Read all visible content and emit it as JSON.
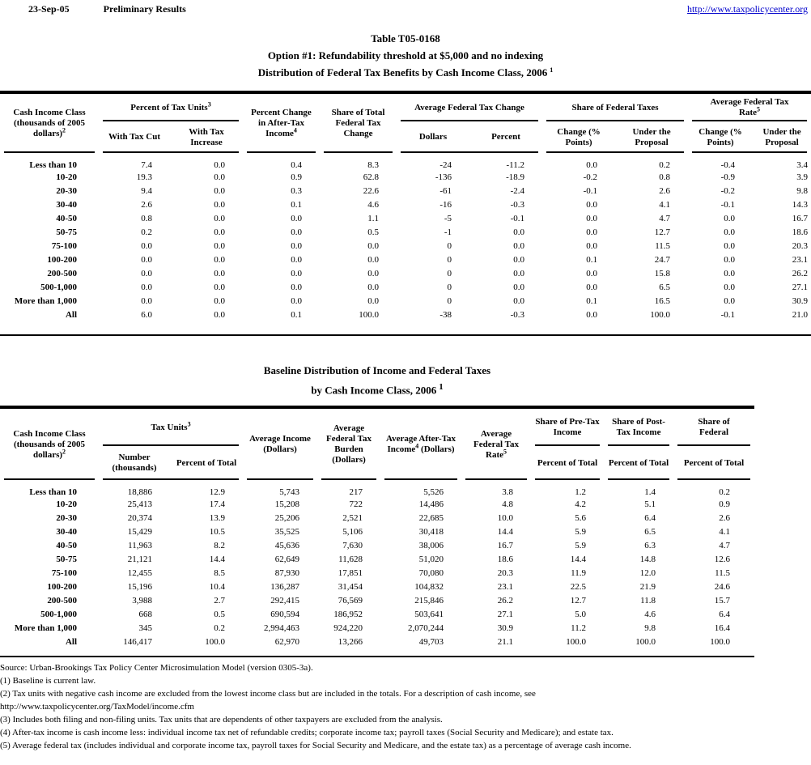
{
  "page_header": {
    "date": "23-Sep-05",
    "status": "Preliminary Results",
    "url": "http://www.taxpolicycenter.org",
    "link_color": "#0000cc"
  },
  "title": {
    "line1": "Table T05-0168",
    "line2": "Option #1: Refundability threshold at $5,000 and no indexing",
    "line3": "Distribution of Federal Tax Benefits by Cash Income Class, 2006",
    "line3_sup": "1"
  },
  "table1": {
    "headers": {
      "income_class": "Cash Income Class (thousands of 2005 dollars)",
      "income_class_sup": "2",
      "pct_tax_units": "Percent of Tax Units",
      "pct_tax_units_sup": "3",
      "with_tax_cut": "With Tax Cut",
      "with_tax_increase": "With Tax Increase",
      "pct_change_ati": "Percent Change in After-Tax Income",
      "pct_change_ati_sup": "4",
      "share_total_change": "Share of Total Federal Tax Change",
      "avg_tax_change": "Average Federal Tax Change",
      "dollars": "Dollars",
      "percent": "Percent",
      "share_fed_taxes": "Share of Federal Taxes",
      "change_points_a": "Change (% Points)",
      "under_proposal_a": "Under the Proposal",
      "avg_tax_rate": "Average Federal Tax Rate",
      "avg_tax_rate_sup": "5",
      "change_points_b": "Change (% Points)",
      "under_proposal_b": "Under the Proposal"
    },
    "rows": [
      [
        "Less than 10",
        "7.4",
        "0.0",
        "0.4",
        "8.3",
        "-24",
        "-11.2",
        "0.0",
        "0.2",
        "-0.4",
        "3.4"
      ],
      [
        "10-20",
        "19.3",
        "0.0",
        "0.9",
        "62.8",
        "-136",
        "-18.9",
        "-0.2",
        "0.8",
        "-0.9",
        "3.9"
      ],
      [
        "20-30",
        "9.4",
        "0.0",
        "0.3",
        "22.6",
        "-61",
        "-2.4",
        "-0.1",
        "2.6",
        "-0.2",
        "9.8"
      ],
      [
        "30-40",
        "2.6",
        "0.0",
        "0.1",
        "4.6",
        "-16",
        "-0.3",
        "0.0",
        "4.1",
        "-0.1",
        "14.3"
      ],
      [
        "40-50",
        "0.8",
        "0.0",
        "0.0",
        "1.1",
        "-5",
        "-0.1",
        "0.0",
        "4.7",
        "0.0",
        "16.7"
      ],
      [
        "50-75",
        "0.2",
        "0.0",
        "0.0",
        "0.5",
        "-1",
        "0.0",
        "0.0",
        "12.7",
        "0.0",
        "18.6"
      ],
      [
        "75-100",
        "0.0",
        "0.0",
        "0.0",
        "0.0",
        "0",
        "0.0",
        "0.0",
        "11.5",
        "0.0",
        "20.3"
      ],
      [
        "100-200",
        "0.0",
        "0.0",
        "0.0",
        "0.0",
        "0",
        "0.0",
        "0.1",
        "24.7",
        "0.0",
        "23.1"
      ],
      [
        "200-500",
        "0.0",
        "0.0",
        "0.0",
        "0.0",
        "0",
        "0.0",
        "0.0",
        "15.8",
        "0.0",
        "26.2"
      ],
      [
        "500-1,000",
        "0.0",
        "0.0",
        "0.0",
        "0.0",
        "0",
        "0.0",
        "0.0",
        "6.5",
        "0.0",
        "27.1"
      ],
      [
        "More than 1,000",
        "0.0",
        "0.0",
        "0.0",
        "0.0",
        "0",
        "0.0",
        "0.1",
        "16.5",
        "0.0",
        "30.9"
      ],
      [
        "All",
        "6.0",
        "0.0",
        "0.1",
        "100.0",
        "-38",
        "-0.3",
        "0.0",
        "100.0",
        "-0.1",
        "21.0"
      ]
    ]
  },
  "table2_title": {
    "line1": "Baseline Distribution of Income and Federal Taxes",
    "line2": "by Cash Income Class, 2006",
    "line2_sup": "1"
  },
  "table2": {
    "headers": {
      "income_class": "Cash Income Class (thousands of 2005 dollars)",
      "income_class_sup": "2",
      "tax_units": "Tax Units",
      "tax_units_sup": "3",
      "number_thousands": "Number (thousands)",
      "percent_of_total": "Percent of Total",
      "avg_income": "Average Income (Dollars)",
      "avg_burden": "Average Federal Tax Burden (Dollars)",
      "avg_after_tax": "Average After-Tax Income",
      "avg_after_tax_sup": "4",
      "avg_after_tax_sfx": "(Dollars)",
      "avg_rate": "Average Federal Tax Rate",
      "avg_rate_sup": "5",
      "share_pretax": "Share of Pre-Tax Income",
      "share_posttax": "Share of Post-Tax Income",
      "share_federal": "Share of Federal",
      "pct_total_a": "Percent of Total",
      "pct_total_b": "Percent of Total",
      "pct_total_c": "Percent of Total"
    },
    "rows": [
      [
        "Less than 10",
        "18,886",
        "12.9",
        "5,743",
        "217",
        "5,526",
        "3.8",
        "1.2",
        "1.4",
        "0.2"
      ],
      [
        "10-20",
        "25,413",
        "17.4",
        "15,208",
        "722",
        "14,486",
        "4.8",
        "4.2",
        "5.1",
        "0.9"
      ],
      [
        "20-30",
        "20,374",
        "13.9",
        "25,206",
        "2,521",
        "22,685",
        "10.0",
        "5.6",
        "6.4",
        "2.6"
      ],
      [
        "30-40",
        "15,429",
        "10.5",
        "35,525",
        "5,106",
        "30,418",
        "14.4",
        "5.9",
        "6.5",
        "4.1"
      ],
      [
        "40-50",
        "11,963",
        "8.2",
        "45,636",
        "7,630",
        "38,006",
        "16.7",
        "5.9",
        "6.3",
        "4.7"
      ],
      [
        "50-75",
        "21,121",
        "14.4",
        "62,649",
        "11,628",
        "51,020",
        "18.6",
        "14.4",
        "14.8",
        "12.6"
      ],
      [
        "75-100",
        "12,455",
        "8.5",
        "87,930",
        "17,851",
        "70,080",
        "20.3",
        "11.9",
        "12.0",
        "11.5"
      ],
      [
        "100-200",
        "15,196",
        "10.4",
        "136,287",
        "31,454",
        "104,832",
        "23.1",
        "22.5",
        "21.9",
        "24.6"
      ],
      [
        "200-500",
        "3,988",
        "2.7",
        "292,415",
        "76,569",
        "215,846",
        "26.2",
        "12.7",
        "11.8",
        "15.7"
      ],
      [
        "500-1,000",
        "668",
        "0.5",
        "690,594",
        "186,952",
        "503,641",
        "27.1",
        "5.0",
        "4.6",
        "6.4"
      ],
      [
        "More than 1,000",
        "345",
        "0.2",
        "2,994,463",
        "924,220",
        "2,070,244",
        "30.9",
        "11.2",
        "9.8",
        "16.4"
      ],
      [
        "All",
        "146,417",
        "100.0",
        "62,970",
        "13,266",
        "49,703",
        "21.1",
        "100.0",
        "100.0",
        "100.0"
      ]
    ]
  },
  "footnotes": [
    "Source: Urban-Brookings Tax Policy Center Microsimulation Model (version 0305-3a).",
    "(1) Baseline is current law.",
    "(2) Tax units with negative cash income are excluded from the lowest income class but are included in the totals. For a description of cash income, see",
    "http://www.taxpolicycenter.org/TaxModel/income.cfm",
    "(3) Includes both filing and non-filing units.  Tax units that are dependents of other taxpayers are excluded from the analysis.",
    "(4) After-tax income is cash income less: individual income tax net of refundable credits; corporate income tax; payroll taxes (Social Security and Medicare); and estate tax.",
    "(5) Average federal tax (includes individual and corporate income tax, payroll taxes for Social Security and Medicare, and the estate tax) as a percentage of average cash income."
  ]
}
